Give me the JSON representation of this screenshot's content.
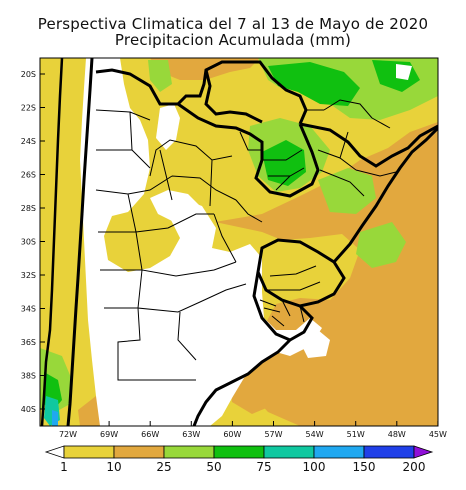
{
  "title": {
    "line1": "Perspectiva Climatica del 7 al 13 de Mayo de 2020",
    "line2": "Precipitacion Acumulada (mm)"
  },
  "map": {
    "lat_ticks": [
      "20S",
      "22S",
      "24S",
      "26S",
      "28S",
      "30S",
      "32S",
      "34S",
      "36S",
      "38S",
      "40S"
    ],
    "lon_ticks": [
      "72W",
      "69W",
      "66W",
      "63W",
      "60W",
      "57W",
      "54W",
      "51W",
      "48W",
      "45W"
    ]
  },
  "colorbar": {
    "labels": [
      "1",
      "10",
      "25",
      "50",
      "75",
      "100",
      "150",
      "200"
    ],
    "colors": [
      "#ffffff",
      "#e8d23a",
      "#e2a83e",
      "#98d83a",
      "#10c010",
      "#10c8a0",
      "#20a8f0",
      "#2040e8",
      "#9010d8"
    ]
  },
  "palette": {
    "none": "#ffffff",
    "p1_10": "#e8d23a",
    "p10_25": "#e2a83e",
    "p25_50": "#98d83a",
    "p50_75": "#10c010",
    "p75_100": "#10c8a0",
    "borders": "#000000"
  }
}
